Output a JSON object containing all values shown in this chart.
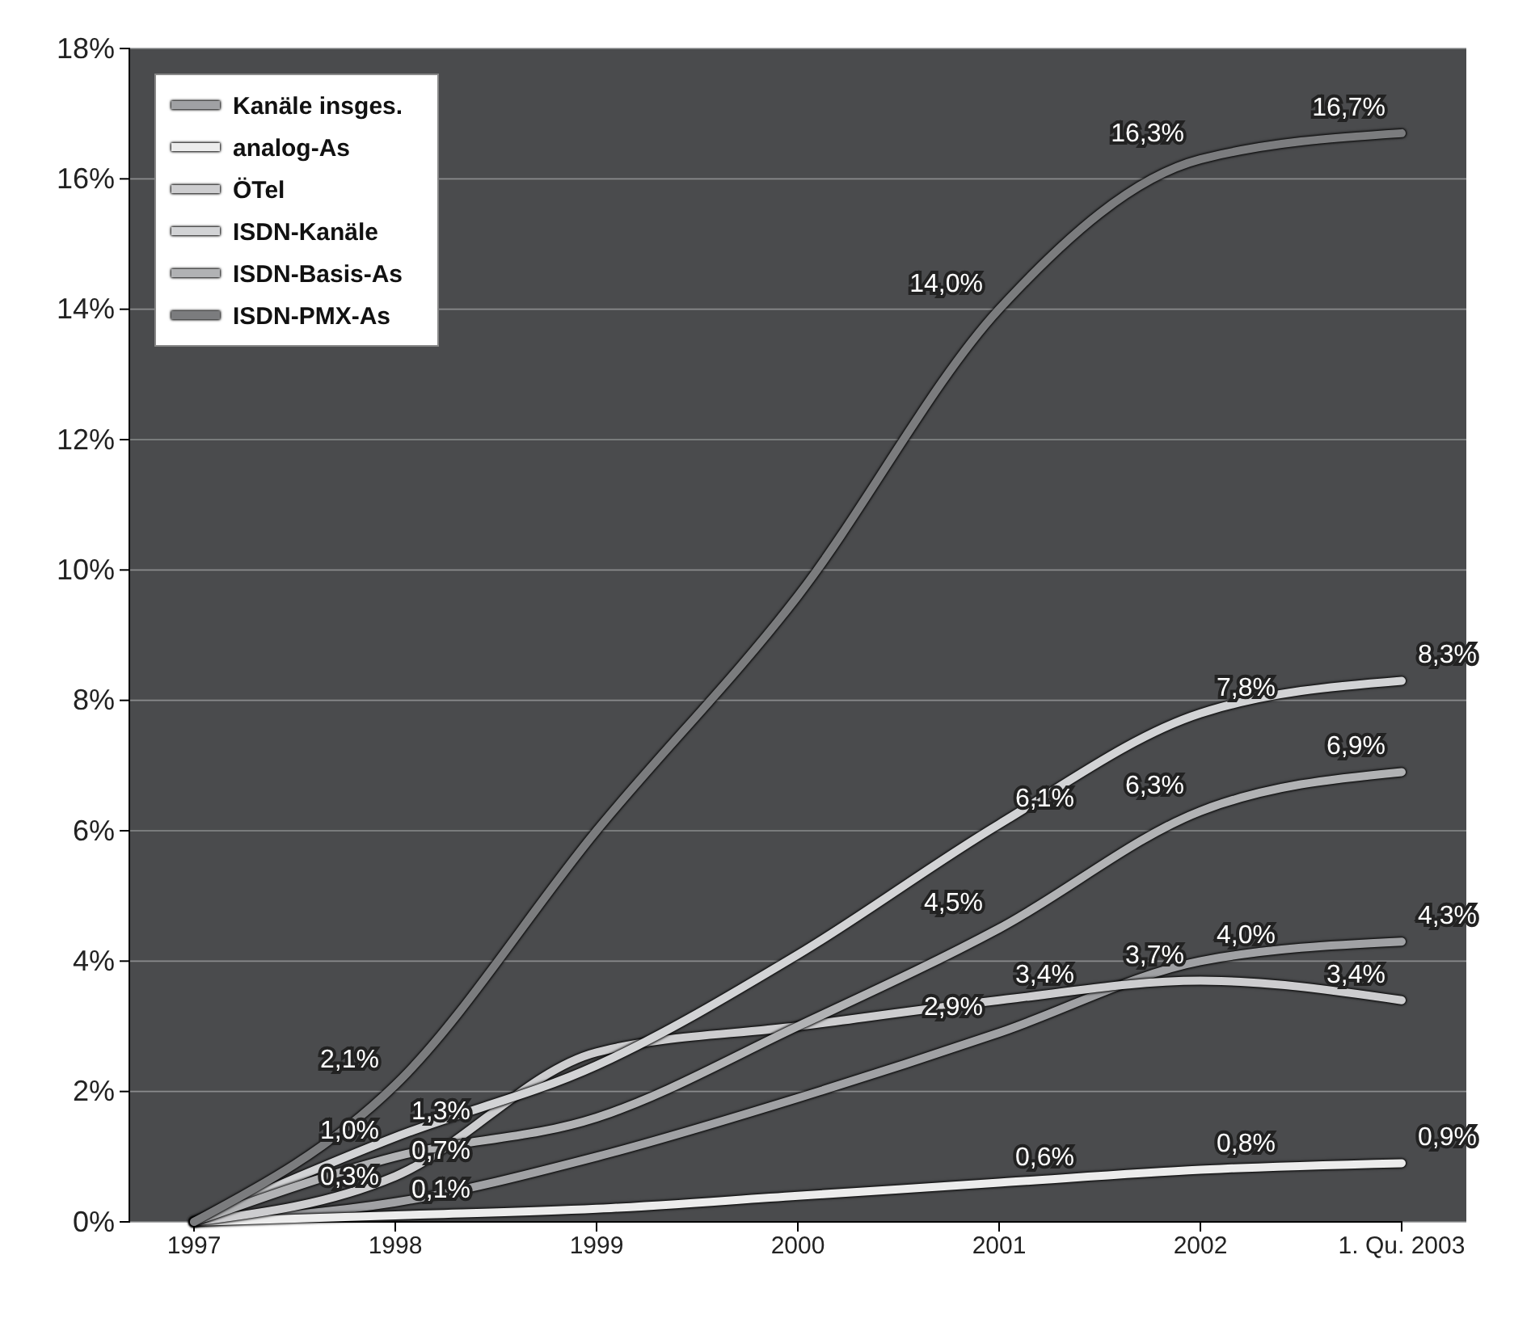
{
  "chart_data": {
    "type": "line",
    "categories": [
      "1997",
      "1998",
      "1999",
      "2000",
      "2001",
      "2002",
      "1. Qu. 2003"
    ],
    "ylim": [
      0,
      18
    ],
    "yticks": [
      {
        "value": 0,
        "label": "0%"
      },
      {
        "value": 2,
        "label": "2%"
      },
      {
        "value": 4,
        "label": "4%"
      },
      {
        "value": 6,
        "label": "6%"
      },
      {
        "value": 8,
        "label": "8%"
      },
      {
        "value": 10,
        "label": "10%"
      },
      {
        "value": 12,
        "label": "12%"
      },
      {
        "value": 14,
        "label": "14%"
      },
      {
        "value": 16,
        "label": "16%"
      },
      {
        "value": 18,
        "label": "18%"
      }
    ],
    "grid": "y",
    "legend": "top left",
    "marker": "none",
    "series": [
      {
        "name": "Kanäle insges.",
        "color": "#a0a1a4",
        "values": [
          0,
          0.3,
          1.0,
          1.9,
          2.9,
          4.0,
          4.3
        ],
        "value_labels": [
          null,
          "0,3%",
          null,
          null,
          "2,9%",
          "4,0%",
          "4,3%"
        ]
      },
      {
        "name": "analog-As",
        "color": "#ececec",
        "values": [
          0,
          0.1,
          0.2,
          0.4,
          0.6,
          0.8,
          0.9
        ],
        "value_labels": [
          null,
          "0,1%",
          null,
          null,
          "0,6%",
          "0,8%",
          "0,9%"
        ]
      },
      {
        "name": "ÖTel",
        "color": "#cdcdcf",
        "values": [
          0,
          0.7,
          2.6,
          3.0,
          3.4,
          3.7,
          3.4
        ],
        "value_labels": [
          null,
          "0,7%",
          null,
          null,
          "3,4%",
          "3,7%",
          "3,4%"
        ]
      },
      {
        "name": "ISDN-Kanäle",
        "color": "#d2d3d5",
        "values": [
          0,
          1.3,
          2.4,
          4.1,
          6.1,
          7.8,
          8.3
        ],
        "value_labels": [
          null,
          "1,3%",
          null,
          null,
          "6,1%",
          "7,8%",
          "8,3%"
        ]
      },
      {
        "name": "ISDN-Basis-As",
        "color": "#b1b2b4",
        "values": [
          0,
          1.0,
          1.6,
          3.0,
          4.5,
          6.3,
          6.9
        ],
        "value_labels": [
          null,
          "1,0%",
          null,
          null,
          "4,5%",
          "6,3%",
          "6,9%"
        ]
      },
      {
        "name": "ISDN-PMX-As",
        "color": "#7b7c7e",
        "values": [
          0,
          2.1,
          6.0,
          9.6,
          14.0,
          16.3,
          16.7
        ],
        "value_labels": [
          null,
          "2,1%",
          null,
          null,
          "14,0%",
          "16,3%",
          "16,7%"
        ]
      }
    ]
  }
}
